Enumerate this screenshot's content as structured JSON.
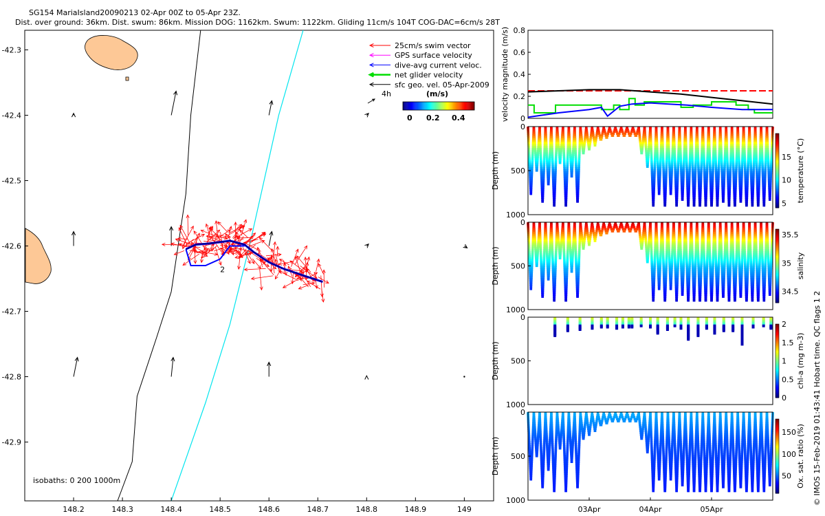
{
  "header": {
    "title": "SG154 MariaIsland20090213 02-Apr 00Z to 05-Apr 23Z.",
    "subtitle": "Dist. over ground: 36km. Dist. swum: 86km. Mission DOG: 1162km. Swum: 1122km. Gliding 11cm/s 104T COG-DAC=6cm/s 28T"
  },
  "side_label": "© IMOS 15-Feb-2019 01:43:41 Hobart time. QC flags 1 2",
  "colors": {
    "swim": "#ff0000",
    "gps": "#ff00ff",
    "dac": "#0000ff",
    "net": "#00dd00",
    "sfc": "#000000",
    "land": "#fdc896",
    "isobath_200": "#000000",
    "isobath_1000": "#00e5ee"
  },
  "chart_data": [
    {
      "type": "map",
      "legend": {
        "items": [
          {
            "label": "25cm/s swim vector",
            "color": "#ff0000",
            "icon": "arrow-left"
          },
          {
            "label": "GPS surface velocity",
            "color": "#ff00ff",
            "icon": "arrow-left"
          },
          {
            "label": "dive-avg current veloc.",
            "color": "#0000ff",
            "icon": "arrow-left"
          },
          {
            "label": "net glider velocity",
            "color": "#00dd00",
            "icon": "arrow-left"
          },
          {
            "label": "sfc geo. vel. 05-Apr-2009",
            "color": "#000000",
            "icon": "arrow-left"
          }
        ],
        "scale_label": "4h",
        "colorbar_title": "(m/s)",
        "colorbar_ticks": [
          "0",
          "0.2",
          "0.4"
        ],
        "colorbar_range": [
          0,
          0.5
        ],
        "placement": "top-right"
      },
      "isobaths_label": "isobaths: 0   200  1000m",
      "xticks": [
        148.2,
        148.3,
        148.4,
        148.5,
        148.6,
        148.7,
        148.8,
        148.9,
        149
      ],
      "yticks": [
        -42.3,
        -42.4,
        -42.5,
        -42.6,
        -42.7,
        -42.8,
        -42.9
      ],
      "xlim": [
        148.1,
        149.06
      ],
      "ylim": [
        -42.99,
        -42.27
      ],
      "glider_track": [
        [
          148.43,
          -42.605
        ],
        [
          148.45,
          -42.598
        ],
        [
          148.48,
          -42.596
        ],
        [
          148.52,
          -42.592
        ],
        [
          148.55,
          -42.598
        ],
        [
          148.57,
          -42.61
        ],
        [
          148.6,
          -42.625
        ],
        [
          148.63,
          -42.635
        ],
        [
          148.67,
          -42.645
        ],
        [
          148.71,
          -42.655
        ]
      ],
      "isobath_200": [
        [
          148.46,
          -42.27
        ],
        [
          148.44,
          -42.4
        ],
        [
          148.43,
          -42.52
        ],
        [
          148.4,
          -42.67
        ],
        [
          148.37,
          -42.74
        ],
        [
          148.33,
          -42.83
        ],
        [
          148.32,
          -42.93
        ],
        [
          148.29,
          -42.99
        ]
      ],
      "isobath_1000": [
        [
          148.67,
          -42.27
        ],
        [
          148.62,
          -42.4
        ],
        [
          148.56,
          -42.6
        ],
        [
          148.52,
          -42.72
        ],
        [
          148.47,
          -42.84
        ],
        [
          148.4,
          -42.99
        ]
      ],
      "sfc_vectors": [
        {
          "lon": 148.2,
          "lat": -42.4,
          "u": 0.0,
          "v": 0.02
        },
        {
          "lon": 148.4,
          "lat": -42.4,
          "u": 0.05,
          "v": 0.25
        },
        {
          "lon": 148.6,
          "lat": -42.4,
          "u": 0.03,
          "v": 0.15
        },
        {
          "lon": 148.8,
          "lat": -42.4,
          "u": 0.02,
          "v": 0.02
        },
        {
          "lon": 148.2,
          "lat": -42.6,
          "u": 0.0,
          "v": 0.15
        },
        {
          "lon": 148.4,
          "lat": -42.6,
          "u": 0.0,
          "v": 0.2
        },
        {
          "lon": 148.6,
          "lat": -42.6,
          "u": 0.03,
          "v": 0.15
        },
        {
          "lon": 148.8,
          "lat": -42.6,
          "u": 0.02,
          "v": 0.02
        },
        {
          "lon": 149.0,
          "lat": -42.6,
          "u": 0.03,
          "v": -0.02
        },
        {
          "lon": 148.2,
          "lat": -42.8,
          "u": 0.04,
          "v": 0.2
        },
        {
          "lon": 148.4,
          "lat": -42.8,
          "u": 0.02,
          "v": 0.2
        },
        {
          "lon": 148.6,
          "lat": -42.8,
          "u": 0.0,
          "v": 0.15
        },
        {
          "lon": 148.8,
          "lat": -42.8,
          "u": 0.0,
          "v": 0.01
        },
        {
          "lon": 149.0,
          "lat": -42.8,
          "u": 0.0,
          "v": 0.0
        }
      ]
    },
    {
      "type": "line",
      "ylabel": "velocity magnitude (m/s)",
      "ylim": [
        0,
        0.8
      ],
      "yticks": [
        0,
        0.2,
        0.4,
        0.6,
        0.8
      ],
      "xlim": [
        0,
        4
      ],
      "series": [
        {
          "color": "#ff0000",
          "dash": true,
          "x": [
            0,
            4
          ],
          "y": [
            0.25,
            0.25
          ]
        },
        {
          "color": "#000000",
          "x": [
            0,
            0.5,
            1,
            1.5,
            2,
            2.5,
            3,
            3.5,
            4
          ],
          "y": [
            0.24,
            0.25,
            0.26,
            0.26,
            0.24,
            0.22,
            0.19,
            0.16,
            0.13
          ]
        },
        {
          "color": "#00dd00",
          "x": [
            0,
            0.1,
            0.1,
            0.45,
            0.45,
            1.2,
            1.2,
            1.4,
            1.4,
            1.5,
            1.5,
            1.65,
            1.65,
            1.75,
            1.75,
            1.9,
            1.9,
            2.5,
            2.5,
            2.7,
            2.7,
            3.0,
            3.0,
            3.4,
            3.4,
            3.6,
            3.6,
            3.7,
            3.7,
            4
          ],
          "y": [
            0.12,
            0.12,
            0.05,
            0.05,
            0.12,
            0.12,
            0.08,
            0.08,
            0.12,
            0.12,
            0.08,
            0.08,
            0.18,
            0.18,
            0.12,
            0.12,
            0.15,
            0.15,
            0.1,
            0.1,
            0.12,
            0.12,
            0.15,
            0.15,
            0.12,
            0.12,
            0.08,
            0.08,
            0.05,
            0.05
          ]
        },
        {
          "color": "#0000ff",
          "x": [
            0,
            0.5,
            1,
            1.2,
            1.3,
            1.5,
            1.7,
            2,
            2.3,
            2.6,
            3,
            3.5,
            4
          ],
          "y": [
            0.01,
            0.05,
            0.08,
            0.1,
            0.02,
            0.11,
            0.13,
            0.14,
            0.13,
            0.12,
            0.1,
            0.08,
            0.08
          ]
        }
      ]
    },
    {
      "type": "scatter",
      "variable": "temperature",
      "ylabel": "Depth (m)",
      "clabel": "temperature (°C)",
      "ylim": [
        1000,
        0
      ],
      "yticks": [
        0,
        500,
        1000
      ],
      "clim": [
        4,
        20
      ],
      "cticks": [
        5,
        10,
        15
      ],
      "max_depths": [
        750,
        500,
        850,
        650,
        880,
        400,
        880,
        550,
        850,
        300,
        250,
        200,
        150,
        120,
        100,
        100,
        100,
        100,
        100,
        300,
        450,
        880,
        750,
        900,
        750,
        880,
        820,
        900,
        880,
        900,
        880,
        900,
        880,
        850,
        880,
        900,
        850,
        900,
        880,
        900,
        880,
        820
      ],
      "colorscale": "jet",
      "value_at_depth": [
        [
          0,
          18
        ],
        [
          100,
          16
        ],
        [
          250,
          12
        ],
        [
          500,
          8
        ],
        [
          900,
          5
        ]
      ]
    },
    {
      "type": "scatter",
      "variable": "salinity",
      "ylabel": "Depth (m)",
      "clabel": "salinity",
      "ylim": [
        1000,
        0
      ],
      "yticks": [
        0,
        500,
        1000
      ],
      "clim": [
        34.3,
        35.6
      ],
      "cticks": [
        34.5,
        35,
        35.5
      ],
      "colorscale": "jet",
      "value_at_depth": [
        [
          0,
          35.5
        ],
        [
          100,
          35.3
        ],
        [
          250,
          35.0
        ],
        [
          500,
          34.7
        ],
        [
          900,
          34.4
        ]
      ]
    },
    {
      "type": "scatter",
      "variable": "chl-a",
      "ylabel": "Depth (m)",
      "clabel": "chl-a (mg m-3)",
      "ylim": [
        1000,
        0
      ],
      "yticks": [
        0,
        500,
        1000
      ],
      "clim": [
        0,
        2
      ],
      "cticks": [
        0,
        0.5,
        1,
        1.5,
        2
      ],
      "colorscale": "jet",
      "casts": [
        {
          "x": 0.44,
          "d": 200
        },
        {
          "x": 0.65,
          "d": 150
        },
        {
          "x": 0.85,
          "d": 130
        },
        {
          "x": 1.05,
          "d": 120
        },
        {
          "x": 1.2,
          "d": 110
        },
        {
          "x": 1.3,
          "d": 100
        },
        {
          "x": 1.45,
          "d": 120
        },
        {
          "x": 1.55,
          "d": 110
        },
        {
          "x": 1.65,
          "d": 100
        },
        {
          "x": 1.7,
          "d": 110
        },
        {
          "x": 1.85,
          "d": 90
        },
        {
          "x": 2.0,
          "d": 100
        },
        {
          "x": 2.12,
          "d": 180
        },
        {
          "x": 2.28,
          "d": 130
        },
        {
          "x": 2.4,
          "d": 90
        },
        {
          "x": 2.5,
          "d": 120
        },
        {
          "x": 2.62,
          "d": 250
        },
        {
          "x": 2.78,
          "d": 200
        },
        {
          "x": 2.92,
          "d": 120
        },
        {
          "x": 3.05,
          "d": 180
        },
        {
          "x": 3.2,
          "d": 150
        },
        {
          "x": 3.35,
          "d": 140
        },
        {
          "x": 3.5,
          "d": 300
        },
        {
          "x": 3.68,
          "d": 110
        },
        {
          "x": 3.85,
          "d": 90
        },
        {
          "x": 3.97,
          "d": 120
        }
      ]
    },
    {
      "type": "scatter",
      "variable": "oxygen saturation",
      "ylabel": "Depth (m)",
      "clabel": "Ox. sat. ratio (%)",
      "ylim": [
        1000,
        0
      ],
      "yticks": [
        0,
        500,
        1000
      ],
      "clim": [
        10,
        180
      ],
      "cticks": [
        50,
        100,
        150
      ],
      "colorscale": "jet",
      "value_at_depth": [
        [
          0,
          60
        ],
        [
          300,
          45
        ],
        [
          900,
          35
        ]
      ]
    }
  ],
  "time_axis": {
    "xlim_days": [
      0,
      4
    ],
    "ticks": [
      {
        "day": 1.0,
        "label": "03Apr"
      },
      {
        "day": 2.0,
        "label": "04Apr"
      },
      {
        "day": 3.0,
        "label": "05Apr"
      }
    ]
  }
}
